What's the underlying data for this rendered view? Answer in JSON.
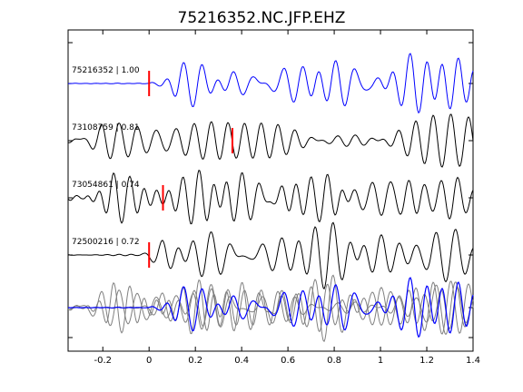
{
  "chart_data": {
    "type": "line",
    "title": "75216352.NC.JFP.EHZ",
    "xlabel": "",
    "ylabel": "",
    "xlim": [
      -0.35,
      1.4
    ],
    "xticks": [
      -0.2,
      0,
      0.2,
      0.4,
      0.6,
      0.8,
      1,
      1.2,
      1.4
    ],
    "xtick_labels": [
      "-0.2",
      "0",
      "0.2",
      "0.4",
      "0.6",
      "0.8",
      "1",
      "1.2",
      "1.4"
    ],
    "grid": false,
    "colors": {
      "reference": "#0000ff",
      "trace": "#000000",
      "overlay": "#808080",
      "pick": "#ff0000"
    },
    "series": [
      {
        "label": "75216352 | 1.00",
        "pick_time": 0.0,
        "onset": 0.0,
        "color": "#0000ff",
        "seed": 1,
        "noise": 0.02
      },
      {
        "label": "73108759 | 0.81",
        "pick_time": 0.36,
        "onset": -0.32,
        "color": "#000000",
        "seed": 2,
        "noise": 0.35
      },
      {
        "label": "73054861 | 0.74",
        "pick_time": 0.06,
        "onset": -0.28,
        "color": "#000000",
        "seed": 3,
        "noise": 0.22
      },
      {
        "label": "72500216 | 0.72",
        "pick_time": 0.0,
        "onset": -0.05,
        "color": "#000000",
        "seed": 4,
        "noise": 0.06
      }
    ],
    "overlay": {
      "description_hidden": true
    }
  }
}
